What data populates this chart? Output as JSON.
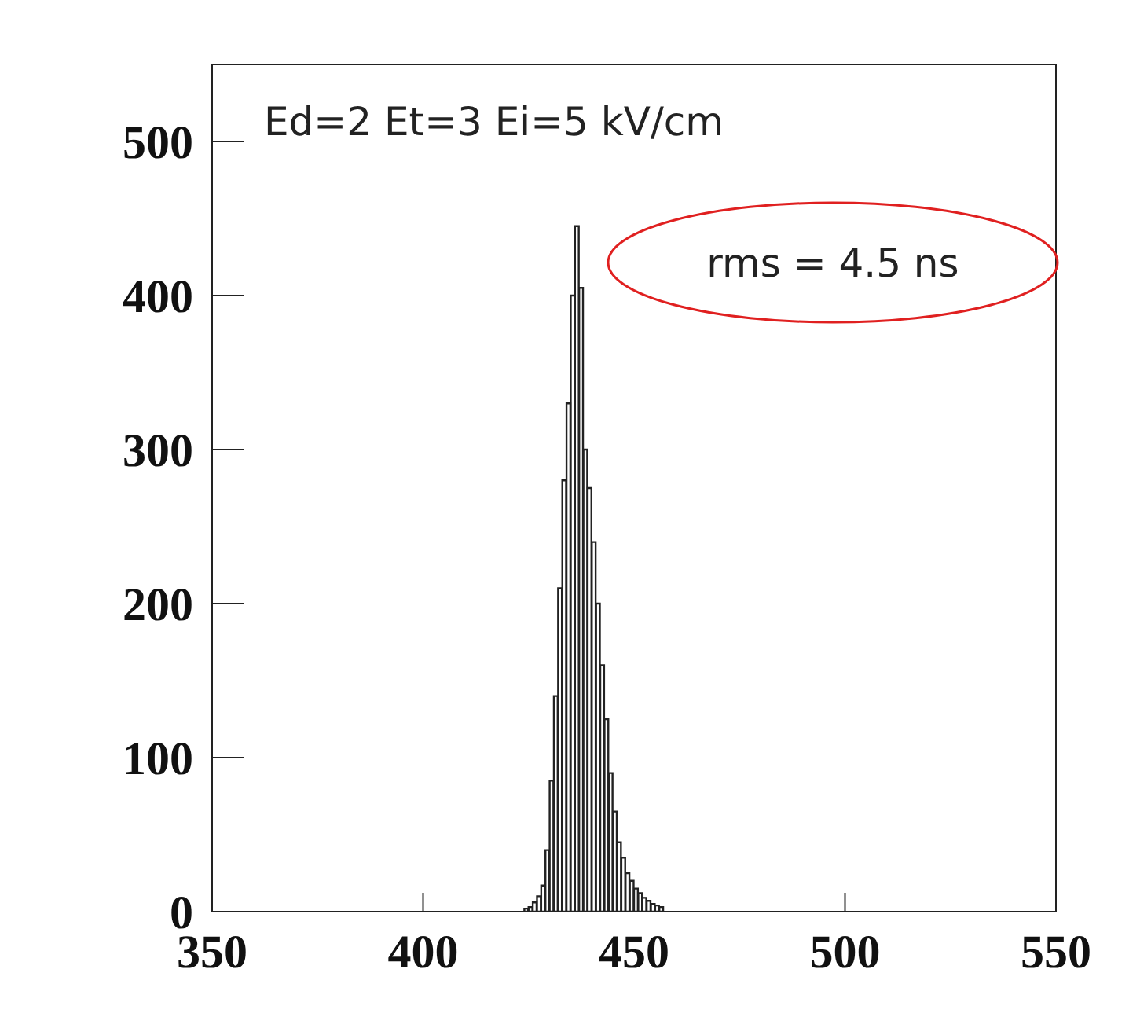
{
  "chart_data": {
    "type": "histogram",
    "title": "Ed=2 Et=3 Ei=5 kV/cm",
    "annotations": [
      "rms = 4.5 ns"
    ],
    "bins": [
      422,
      423,
      424,
      425,
      426,
      427,
      428,
      429,
      430,
      431,
      432,
      433,
      434,
      435,
      436,
      437,
      438,
      439,
      440,
      441,
      442,
      443,
      444,
      445,
      446,
      447,
      448,
      449,
      450,
      451,
      452,
      453,
      454,
      455,
      456,
      457
    ],
    "values": [
      null,
      null,
      2,
      3,
      6,
      10,
      17,
      40,
      85,
      140,
      210,
      280,
      330,
      400,
      445,
      405,
      300,
      275,
      240,
      200,
      160,
      125,
      90,
      65,
      45,
      35,
      25,
      20,
      15,
      12,
      9,
      7,
      5,
      4,
      3
    ],
    "color": "#222222",
    "xlim": [
      350,
      550
    ],
    "xticks": [
      350,
      400,
      450,
      500,
      550
    ],
    "ylim": [
      0,
      550
    ],
    "yticks": [
      0,
      100,
      200,
      300,
      400,
      500
    ]
  }
}
